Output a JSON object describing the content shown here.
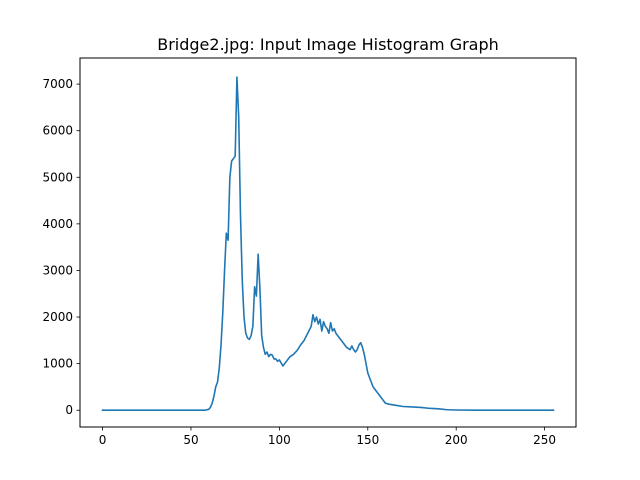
{
  "chart_data": {
    "type": "line",
    "title": "Bridge2.jpg: Input Image Histogram Graph",
    "xlabel": "",
    "ylabel": "",
    "xlim": [
      -12.75,
      267.75
    ],
    "ylim": [
      -360,
      7560
    ],
    "x_ticks": [
      0,
      50,
      100,
      150,
      200,
      250
    ],
    "y_ticks": [
      0,
      1000,
      2000,
      3000,
      4000,
      5000,
      6000,
      7000
    ],
    "line_color": "#1f77b4",
    "grid": false,
    "series": [
      {
        "x": [
          0,
          10,
          20,
          30,
          40,
          50,
          58,
          60,
          61,
          62,
          63,
          64,
          65,
          66,
          67,
          68,
          69,
          70,
          71,
          72,
          73,
          74,
          75,
          76,
          77,
          78,
          79,
          80,
          81,
          82,
          83,
          84,
          85,
          86,
          87,
          88,
          89,
          90,
          91,
          92,
          93,
          94,
          95,
          96,
          97,
          98,
          99,
          100,
          102,
          104,
          106,
          108,
          110,
          112,
          114,
          116,
          118,
          119,
          120,
          121,
          122,
          123,
          124,
          125,
          126,
          127,
          128,
          129,
          130,
          131,
          132,
          134,
          136,
          138,
          140,
          141,
          142,
          143,
          144,
          145,
          146,
          147,
          148,
          149,
          150,
          151,
          152,
          153,
          154,
          156,
          158,
          160,
          162,
          165,
          170,
          175,
          180,
          185,
          190,
          195,
          200,
          210,
          220,
          230,
          240,
          250,
          255
        ],
        "values": [
          0,
          0,
          0,
          0,
          0,
          0,
          0,
          20,
          60,
          150,
          300,
          500,
          600,
          900,
          1400,
          2100,
          3000,
          3800,
          3650,
          5000,
          5350,
          5400,
          5450,
          7150,
          6300,
          4200,
          2800,
          2000,
          1650,
          1550,
          1520,
          1600,
          1800,
          2650,
          2450,
          3350,
          2600,
          1600,
          1350,
          1200,
          1250,
          1150,
          1200,
          1180,
          1100,
          1100,
          1050,
          1080,
          950,
          1050,
          1150,
          1200,
          1280,
          1400,
          1500,
          1650,
          1800,
          2050,
          1900,
          2000,
          1850,
          1950,
          1700,
          1900,
          1800,
          1750,
          1650,
          1880,
          1700,
          1750,
          1650,
          1550,
          1450,
          1350,
          1300,
          1380,
          1300,
          1250,
          1300,
          1400,
          1450,
          1350,
          1200,
          1000,
          800,
          700,
          600,
          500,
          450,
          350,
          250,
          150,
          130,
          110,
          80,
          70,
          60,
          40,
          30,
          10,
          5,
          0,
          0,
          0,
          0,
          0,
          0
        ]
      }
    ]
  }
}
